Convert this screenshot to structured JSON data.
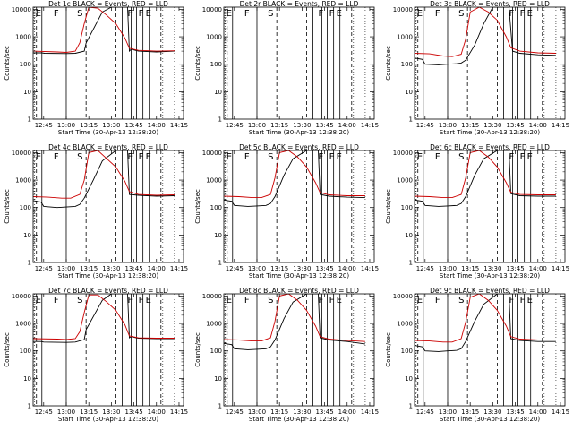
{
  "colors": {
    "background": "#ffffff",
    "axes": "#000000",
    "events": "#000000",
    "lld": "#cc0000"
  },
  "shared": {
    "xlabel": "Start Time (30-Apr-13 12:38:20)",
    "ylabel": "Counts/sec",
    "x_ticks": [
      "12:45",
      "13:00",
      "13:15",
      "13:30",
      "13:45",
      "14:00",
      "14:15"
    ],
    "y_ticks": [
      "1",
      "10",
      "100",
      "1000",
      "10000"
    ]
  },
  "chart_data": [
    {
      "id": "det1",
      "type": "line",
      "title": "Det 1c  BLACK = Events, RED = LLD",
      "flags": [
        "E",
        "F",
        "S",
        "F",
        "F",
        "E"
      ],
      "series": [
        {
          "name": "Events",
          "color": "#000000",
          "x": [
            12.63,
            12.73,
            12.76,
            13.0,
            13.1,
            13.2,
            13.22,
            13.4,
            13.5,
            13.6,
            13.68,
            13.7,
            13.72,
            13.8,
            14.0,
            14.2
          ],
          "values": [
            260,
            260,
            250,
            245,
            250,
            300,
            600,
            8000,
            12000,
            12000,
            12000,
            300,
            350,
            300,
            280,
            300
          ]
        },
        {
          "name": "LLD",
          "color": "#cc0000",
          "x": [
            12.63,
            12.9,
            13.0,
            13.1,
            13.15,
            13.2,
            13.25,
            13.35,
            13.45,
            13.55,
            13.65,
            13.7,
            13.8,
            14.0,
            14.2
          ],
          "values": [
            300,
            280,
            270,
            300,
            600,
            3000,
            12000,
            11000,
            6000,
            3000,
            900,
            380,
            320,
            300,
            310
          ]
        }
      ]
    },
    {
      "id": "det2",
      "type": "line",
      "title": "Det 2r  BLACK = Events, RED = LLD",
      "flags": [
        "E",
        "F",
        "S",
        "F",
        "F",
        "E"
      ],
      "series": []
    },
    {
      "id": "det3",
      "type": "line",
      "title": "Det 3c  BLACK = Events, RED = LLD",
      "flags": [
        "E",
        "F",
        "S",
        "F",
        "F",
        "E"
      ],
      "series": [
        {
          "name": "Events",
          "color": "#000000",
          "x": [
            12.63,
            12.72,
            12.75,
            12.9,
            13.0,
            13.1,
            13.15,
            13.2,
            13.3,
            13.4,
            13.5,
            13.6,
            13.68,
            13.72,
            13.8,
            14.0,
            14.2
          ],
          "values": [
            170,
            150,
            100,
            95,
            100,
            105,
            110,
            140,
            500,
            3000,
            12000,
            12000,
            12000,
            300,
            250,
            220,
            210
          ]
        },
        {
          "name": "LLD",
          "color": "#cc0000",
          "x": [
            12.63,
            12.8,
            12.95,
            13.05,
            13.15,
            13.2,
            13.25,
            13.35,
            13.45,
            13.55,
            13.65,
            13.7,
            13.8,
            14.0,
            14.2
          ],
          "values": [
            250,
            240,
            200,
            190,
            230,
            800,
            8000,
            12000,
            8000,
            4000,
            1000,
            400,
            300,
            260,
            250
          ]
        }
      ]
    },
    {
      "id": "det4",
      "type": "line",
      "title": "Det 4c  BLACK = Events, RED = LLD",
      "flags": [
        "E",
        "F",
        "S",
        "F",
        "F",
        "E"
      ],
      "series": [
        {
          "name": "Events",
          "color": "#000000",
          "x": [
            12.63,
            12.72,
            12.75,
            12.9,
            13.0,
            13.1,
            13.15,
            13.2,
            13.3,
            13.4,
            13.55,
            13.65,
            13.68,
            13.7,
            13.8,
            14.0,
            14.2
          ],
          "values": [
            180,
            160,
            110,
            100,
            105,
            110,
            130,
            220,
            1000,
            5000,
            12000,
            12000,
            12000,
            300,
            280,
            260,
            270
          ]
        },
        {
          "name": "LLD",
          "color": "#cc0000",
          "x": [
            12.63,
            12.8,
            12.95,
            13.05,
            13.15,
            13.2,
            13.25,
            13.35,
            13.45,
            13.55,
            13.65,
            13.7,
            13.8,
            14.0,
            14.2
          ],
          "values": [
            250,
            240,
            220,
            220,
            300,
            1000,
            10000,
            12000,
            6000,
            3000,
            900,
            380,
            300,
            280,
            290
          ]
        }
      ]
    },
    {
      "id": "det5",
      "type": "line",
      "title": "Det 5c  BLACK = Events, RED = LLD",
      "flags": [
        "E",
        "F",
        "S",
        "F",
        "F",
        "E"
      ],
      "series": [
        {
          "name": "Events",
          "color": "#000000",
          "x": [
            12.63,
            12.72,
            12.75,
            12.9,
            13.0,
            13.1,
            13.15,
            13.2,
            13.3,
            13.4,
            13.55,
            13.65,
            13.68,
            13.7,
            13.8,
            14.0,
            14.2
          ],
          "values": [
            190,
            170,
            120,
            110,
            115,
            120,
            140,
            250,
            1500,
            6000,
            12000,
            12000,
            12000,
            300,
            260,
            240,
            230
          ]
        },
        {
          "name": "LLD",
          "color": "#cc0000",
          "x": [
            12.63,
            12.8,
            12.95,
            13.05,
            13.15,
            13.2,
            13.25,
            13.35,
            13.45,
            13.55,
            13.65,
            13.7,
            13.8,
            14.0,
            14.2
          ],
          "values": [
            260,
            250,
            230,
            230,
            300,
            1200,
            10000,
            12000,
            7000,
            3000,
            800,
            350,
            290,
            270,
            270
          ]
        }
      ]
    },
    {
      "id": "det6",
      "type": "line",
      "title": "Det 6c  BLACK = Events, RED = LLD",
      "flags": [
        "E",
        "F",
        "S",
        "F",
        "F",
        "E"
      ],
      "series": [
        {
          "name": "Events",
          "color": "#000000",
          "x": [
            12.63,
            12.72,
            12.75,
            12.9,
            13.0,
            13.1,
            13.15,
            13.2,
            13.3,
            13.4,
            13.55,
            13.65,
            13.68,
            13.7,
            13.8,
            14.0,
            14.2
          ],
          "values": [
            190,
            170,
            120,
            110,
            115,
            120,
            140,
            250,
            1500,
            6000,
            12000,
            12000,
            12000,
            320,
            270,
            260,
            260
          ]
        },
        {
          "name": "LLD",
          "color": "#cc0000",
          "x": [
            12.63,
            12.8,
            12.95,
            13.05,
            13.15,
            13.2,
            13.25,
            13.35,
            13.45,
            13.55,
            13.65,
            13.7,
            13.8,
            14.0,
            14.2
          ],
          "values": [
            260,
            250,
            230,
            230,
            300,
            1200,
            10000,
            12000,
            7000,
            3000,
            800,
            360,
            300,
            290,
            290
          ]
        }
      ]
    },
    {
      "id": "det7",
      "type": "line",
      "title": "Det 7c  BLACK = Events, RED = LLD",
      "flags": [
        "E",
        "F",
        "S",
        "F",
        "F",
        "E"
      ],
      "series": [
        {
          "name": "Events",
          "color": "#000000",
          "x": [
            12.63,
            12.72,
            12.75,
            13.0,
            13.1,
            13.2,
            13.22,
            13.4,
            13.5,
            13.6,
            13.68,
            13.7,
            13.72,
            13.8,
            14.0,
            14.2
          ],
          "values": [
            220,
            220,
            210,
            205,
            210,
            260,
            600,
            7000,
            12000,
            12000,
            12000,
            300,
            330,
            290,
            280,
            280
          ]
        },
        {
          "name": "LLD",
          "color": "#cc0000",
          "x": [
            12.63,
            12.9,
            13.0,
            13.1,
            13.15,
            13.2,
            13.25,
            13.35,
            13.45,
            13.55,
            13.65,
            13.7,
            13.8,
            14.0,
            14.2
          ],
          "values": [
            280,
            270,
            260,
            280,
            500,
            2500,
            11000,
            11000,
            6000,
            3000,
            900,
            350,
            300,
            290,
            290
          ]
        }
      ]
    },
    {
      "id": "det8",
      "type": "line",
      "title": "Det 8c  BLACK = Events, RED = LLD",
      "flags": [
        "E",
        "F",
        "S",
        "F",
        "F",
        "E"
      ],
      "series": [
        {
          "name": "Events",
          "color": "#000000",
          "x": [
            12.63,
            12.72,
            12.75,
            12.9,
            13.0,
            13.1,
            13.15,
            13.2,
            13.3,
            13.4,
            13.55,
            13.65,
            13.68,
            13.7,
            13.8,
            14.0,
            14.2
          ],
          "values": [
            190,
            170,
            120,
            110,
            115,
            120,
            140,
            250,
            1500,
            6000,
            12000,
            12000,
            12000,
            300,
            250,
            220,
            180
          ]
        },
        {
          "name": "LLD",
          "color": "#cc0000",
          "x": [
            12.63,
            12.8,
            12.95,
            13.05,
            13.15,
            13.2,
            13.25,
            13.35,
            13.45,
            13.55,
            13.65,
            13.7,
            13.8,
            14.0,
            14.2
          ],
          "values": [
            260,
            250,
            230,
            230,
            300,
            1200,
            10000,
            12000,
            7000,
            3000,
            800,
            330,
            270,
            240,
            220
          ]
        }
      ]
    },
    {
      "id": "det9",
      "type": "line",
      "title": "Det 9c  BLACK = Events, RED = LLD",
      "flags": [
        "E",
        "F",
        "S",
        "F",
        "F",
        "E"
      ],
      "series": [
        {
          "name": "Events",
          "color": "#000000",
          "x": [
            12.63,
            12.72,
            12.75,
            12.9,
            13.0,
            13.1,
            13.15,
            13.2,
            13.3,
            13.4,
            13.55,
            13.65,
            13.68,
            13.7,
            13.8,
            14.0,
            14.2
          ],
          "values": [
            160,
            140,
            100,
            95,
            100,
            105,
            120,
            220,
            1200,
            5000,
            12000,
            12000,
            12000,
            280,
            240,
            220,
            220
          ]
        },
        {
          "name": "LLD",
          "color": "#cc0000",
          "x": [
            12.63,
            12.8,
            12.95,
            13.05,
            13.15,
            13.2,
            13.25,
            13.35,
            13.45,
            13.55,
            13.65,
            13.7,
            13.8,
            14.0,
            14.2
          ],
          "values": [
            240,
            230,
            210,
            210,
            280,
            1100,
            9000,
            12000,
            7000,
            3000,
            800,
            330,
            270,
            250,
            250
          ]
        }
      ]
    }
  ],
  "axes": {
    "xlim": [
      12.633,
      14.3
    ],
    "ylim": [
      1,
      12000
    ],
    "yscale": "log",
    "flag_lines_solid": [
      12.73,
      13.0,
      13.62,
      13.72,
      13.78,
      13.85,
      13.92
    ],
    "flag_lines_dashed": [
      12.67,
      13.22,
      13.55,
      14.05
    ]
  }
}
